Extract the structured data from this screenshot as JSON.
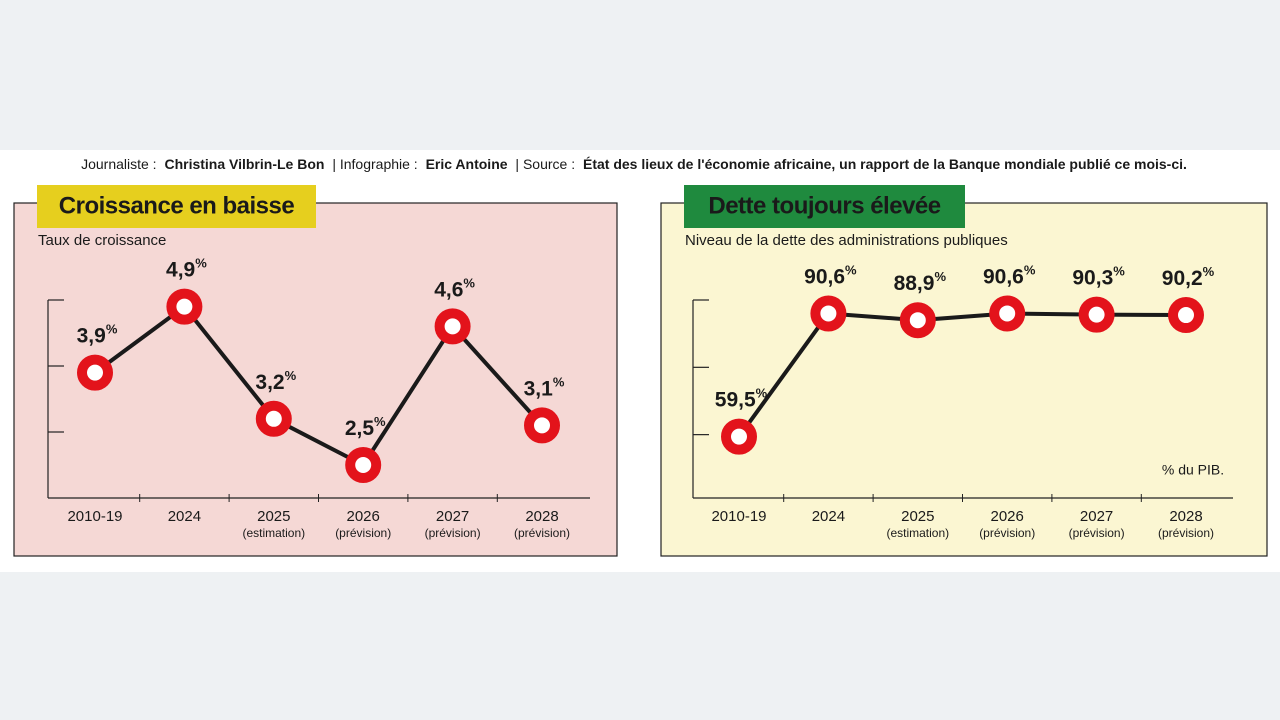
{
  "credits": [
    {
      "label": "Journaliste :",
      "name": "Christina Vilbrin-Le Bon"
    },
    {
      "label": "| Infographie :",
      "name": "Eric Antoine"
    },
    {
      "label": "| Source :",
      "name": "État des lieux de l'économie africaine, un rapport de la Banque mondiale publié ce mois-ci."
    }
  ],
  "chart_data": [
    {
      "type": "line",
      "title": "Croissance en baisse",
      "subtitle": "Taux de croissance",
      "title_bg": "#e6cf1e",
      "title_color": "#111111",
      "panel_bg": "#f5d8d5",
      "categories": [
        "2010-19",
        "2024",
        "2025",
        "2026",
        "2027",
        "2028"
      ],
      "category_notes": [
        null,
        null,
        "(estimation)",
        "(prévision)",
        "(prévision)",
        "(prévision)"
      ],
      "values": [
        3.9,
        4.9,
        3.2,
        2.5,
        4.6,
        3.1
      ],
      "value_labels": [
        "3,9%",
        "4,9%",
        "3,2%",
        "2,5%",
        "4,6%",
        "3,1%"
      ],
      "color": "#e3131b",
      "line_color": "#1a1a1a",
      "ylim": [
        2,
        5
      ],
      "yticks": [
        3,
        4,
        5
      ]
    },
    {
      "type": "line",
      "title": "Dette toujours élevée",
      "subtitle": "Niveau de la dette des administrations publiques",
      "note": "% du PIB.",
      "title_bg": "#1f8a3e",
      "title_color": "#ffffff",
      "panel_bg": "#fbf6d2",
      "categories": [
        "2010-19",
        "2024",
        "2025",
        "2026",
        "2027",
        "2028"
      ],
      "category_notes": [
        null,
        null,
        "(estimation)",
        "(prévision)",
        "(prévision)",
        "(prévision)"
      ],
      "values": [
        59.5,
        90.6,
        88.9,
        90.6,
        90.3,
        90.2
      ],
      "value_labels": [
        "59,5%",
        "90,6%",
        "88,9%",
        "90,6%",
        "90,3%",
        "90,2%"
      ],
      "color": "#e3131b",
      "line_color": "#1a1a1a",
      "ylim": [
        44,
        94
      ],
      "yticks": [
        60,
        77,
        94
      ]
    }
  ]
}
